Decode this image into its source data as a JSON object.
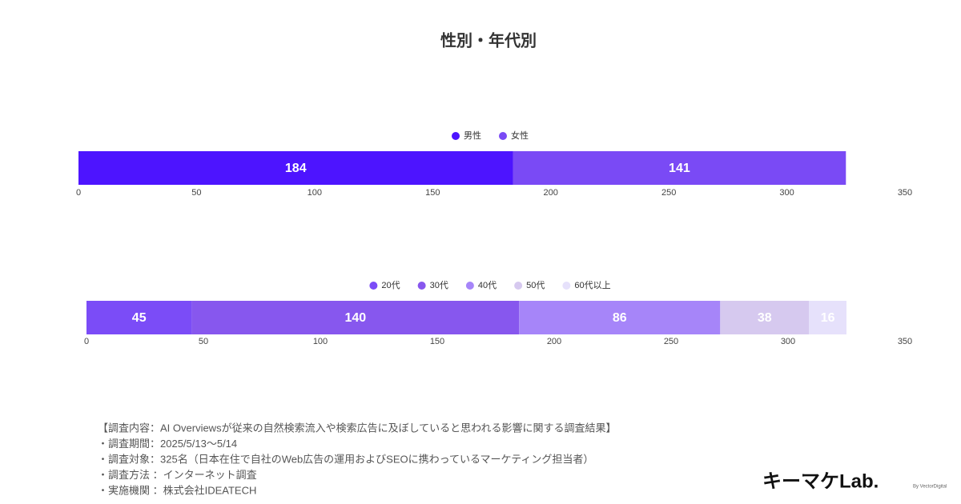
{
  "title": "性別・年代別",
  "chart_data": [
    {
      "type": "stacked-bar",
      "orientation": "horizontal",
      "series": [
        {
          "name": "男性",
          "color": "#4d14ff",
          "values": [
            184
          ]
        },
        {
          "name": "女性",
          "color": "#7a4af5",
          "values": [
            141
          ]
        }
      ],
      "xlim": [
        0,
        350
      ],
      "xticks": [
        0,
        50,
        100,
        150,
        200,
        250,
        300,
        350
      ],
      "legend": "top"
    },
    {
      "type": "stacked-bar",
      "orientation": "horizontal",
      "series": [
        {
          "name": "20代",
          "color": "#7b4cf7",
          "values": [
            45
          ]
        },
        {
          "name": "30代",
          "color": "#8757ee",
          "values": [
            140
          ]
        },
        {
          "name": "40代",
          "color": "#a685f9",
          "values": [
            86
          ]
        },
        {
          "name": "50代",
          "color": "#d6c9ef",
          "values": [
            38
          ]
        },
        {
          "name": "60代以上",
          "color": "#e6e1fb",
          "values": [
            16
          ]
        }
      ],
      "xlim": [
        0,
        350
      ],
      "xticks": [
        0,
        50,
        100,
        150,
        200,
        250,
        300,
        350
      ],
      "legend": "top"
    }
  ],
  "notes": [
    "【調査内容：AI Overviewsが従来の自然検索流入や検索広告に及ぼしていると思われる影響に関する調査結果】",
    "・調査期間：2025/5/13〜5/14",
    "・調査対象：325名（日本在住で自社のWeb広告の運用およびSEOに携わっているマーケティング担当者）",
    "・調査方法 ：インターネット調査",
    "・実施機関 ：株式会社IDEATECH"
  ],
  "logo": {
    "name": "キーマケLab.",
    "by": "By VectorDigital"
  }
}
